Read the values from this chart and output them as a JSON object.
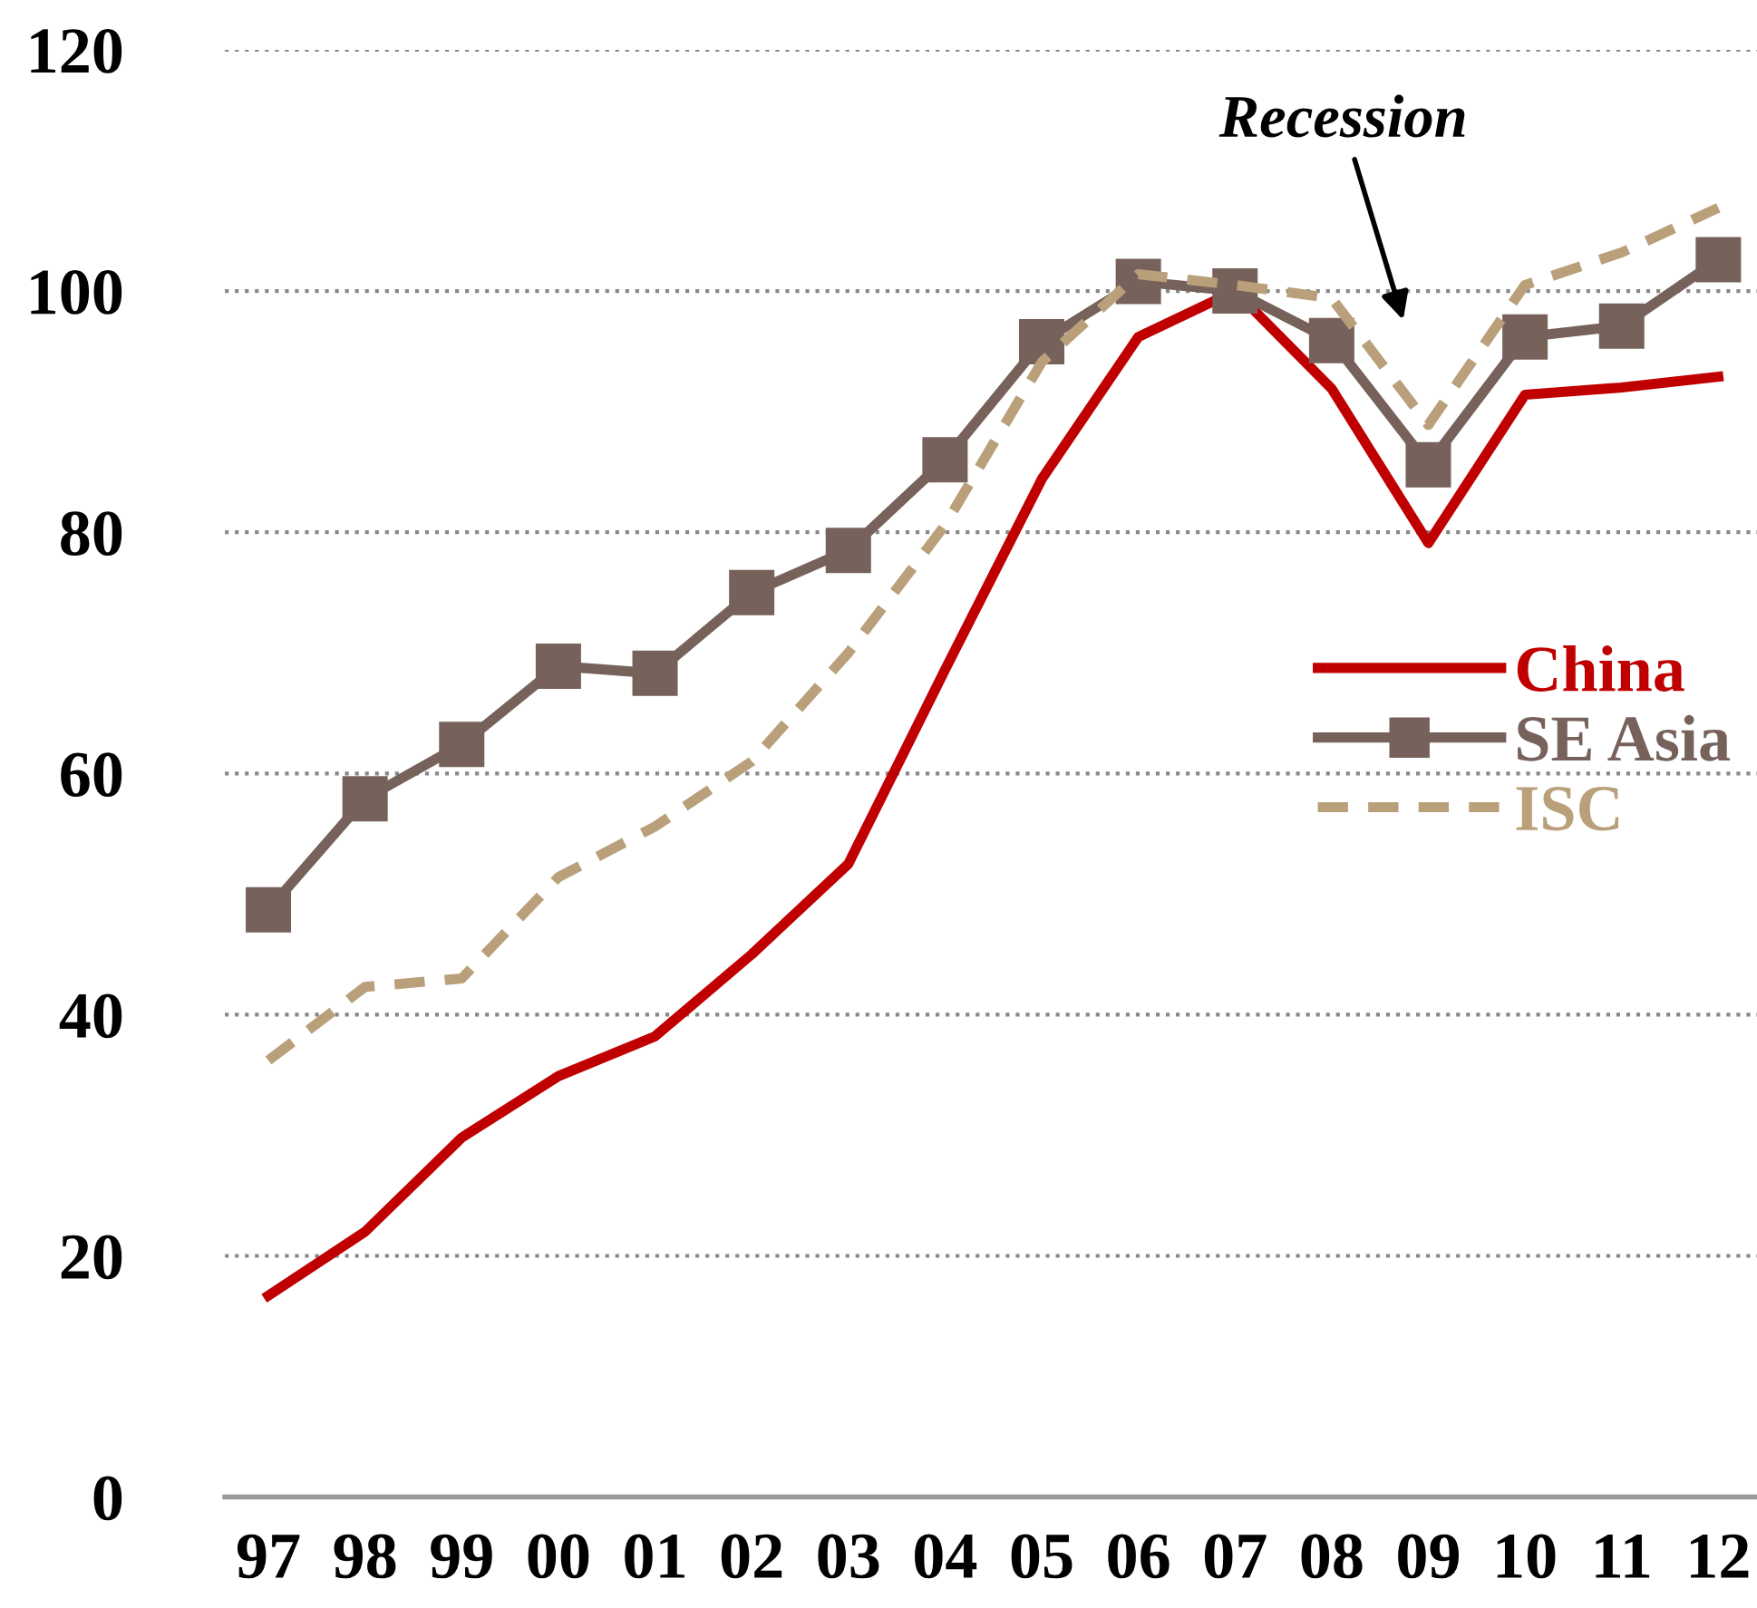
{
  "chart_data": {
    "type": "line",
    "categories": [
      "97",
      "98",
      "99",
      "00",
      "01",
      "02",
      "03",
      "04",
      "05",
      "06",
      "07",
      "08",
      "09",
      "10",
      "11",
      "12"
    ],
    "series": [
      {
        "name": "China",
        "color": "#c00000",
        "marker": "none",
        "line_style": "solid",
        "values": [
          16.7,
          22,
          29.8,
          34.9,
          38.2,
          45,
          52.5,
          68.6,
          84.4,
          96.2,
          100,
          91.9,
          79.1,
          91.4,
          92,
          92.9
        ]
      },
      {
        "name": "SE Asia",
        "color": "#76625a",
        "marker": "square",
        "line_style": "solid",
        "values": [
          48.7,
          57.9,
          62.4,
          68.9,
          68.3,
          75,
          78.5,
          86,
          95.8,
          100.8,
          100,
          95.9,
          85.6,
          96.2,
          97.1,
          102.6
        ]
      },
      {
        "name": "ISC",
        "color": "#b9a07a",
        "marker": "none",
        "line_style": "dashed",
        "values": [
          36.2,
          42.3,
          43,
          51.4,
          55.6,
          61,
          70,
          80.6,
          94.1,
          101.4,
          100.5,
          99.4,
          88.9,
          100.5,
          103.2,
          106.9
        ]
      }
    ],
    "ylim": [
      0,
      120
    ],
    "yticks": [
      0,
      20,
      40,
      60,
      80,
      100,
      120
    ],
    "grid": "y",
    "legend": "right",
    "annotations": [
      "Recession"
    ]
  }
}
